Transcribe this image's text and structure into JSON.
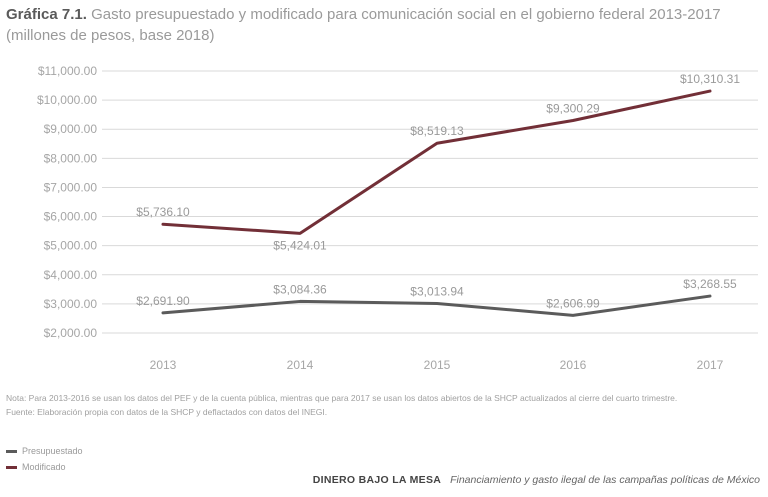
{
  "title": {
    "prefix": "Gráfica 7.1.",
    "text": "Gasto presupuestado y modificado para comunicación social en el gobierno federal 2013-2017 (millones de pesos, base 2018)"
  },
  "chart_data": {
    "type": "line",
    "title": "Gráfica 7.1. Gasto presupuestado y modificado para comunicación social en el gobierno federal 2013-2017 (millones de pesos, base 2018)",
    "xlabel": "",
    "ylabel": "",
    "categories": [
      "2013",
      "2014",
      "2015",
      "2016",
      "2017"
    ],
    "ylim": [
      2000,
      11000
    ],
    "yticks": [
      2000,
      3000,
      4000,
      5000,
      6000,
      7000,
      8000,
      9000,
      10000,
      11000
    ],
    "ytick_labels": [
      "$2,000.00",
      "$3,000.00",
      "$4,000.00",
      "$5,000.00",
      "$6,000.00",
      "$7,000.00",
      "$8,000.00",
      "$9,000.00",
      "$10,000.00",
      "$11,000.00"
    ],
    "grid": true,
    "legend_position": "bottom-left",
    "series": [
      {
        "name": "Presupuestado",
        "color": "#5b5b5b",
        "values": [
          2691.9,
          3084.36,
          3013.94,
          2606.99,
          3268.55
        ],
        "labels": [
          "$2,691.90",
          "$3,084.36",
          "$3,013.94",
          "$2,606.99",
          "$3,268.55"
        ]
      },
      {
        "name": "Modificado",
        "color": "#722f37",
        "values": [
          5736.1,
          5424.01,
          8519.13,
          9300.29,
          10310.31
        ],
        "labels": [
          "$5,736.10",
          "$5,424.01",
          "$8,519.13",
          "$9,300.29",
          "$10,310.31"
        ]
      }
    ]
  },
  "notes": {
    "nota": "Nota: Para 2013-2016 se usan los datos del PEF y de la cuenta pública, mientras que para 2017 se usan los datos abiertos de la SHCP actualizados al cierre del cuarto trimestre.",
    "fuente": "Fuente: Elaboración propia con datos de la SHCP y deflactados con datos del INEGI."
  },
  "footer": {
    "brand": "DINERO BAJO LA MESA",
    "subtitle": "Financiamiento y gasto ilegal de las campañas políticas de México"
  }
}
